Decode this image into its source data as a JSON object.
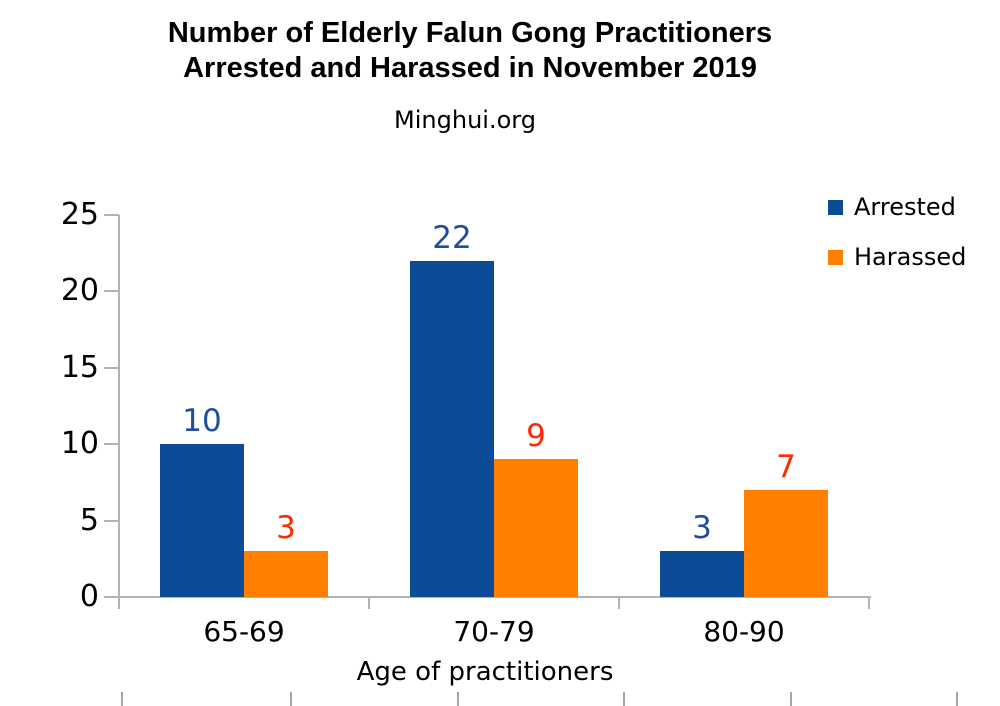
{
  "header": {
    "title_line1": "Number of Elderly Falun Gong Practitioners",
    "title_line2": "Arrested and Harassed in November 2019",
    "subtitle": "Minghui.org"
  },
  "legend": {
    "items": [
      {
        "label": "Arrested",
        "color": "#0c4b96"
      },
      {
        "label": "Harassed",
        "color": "#ff8000"
      }
    ]
  },
  "chart_data": {
    "type": "bar",
    "title": "Number of Elderly Falun Gong Practitioners Arrested and Harassed in November 2019",
    "subtitle": "Minghui.org",
    "categories": [
      "65-69",
      "70-79",
      "80-90"
    ],
    "series": [
      {
        "name": "Arrested",
        "color": "#0c4b96",
        "label_color": "#1f4e9c",
        "values": [
          10,
          22,
          3
        ]
      },
      {
        "name": "Harassed",
        "color": "#ff8000",
        "label_color": "#ff2a00",
        "values": [
          3,
          9,
          7
        ]
      }
    ],
    "xlabel": "Age of practitioners",
    "ylabel": "",
    "y_ticks": [
      0,
      5,
      10,
      15,
      20,
      25
    ],
    "ylim": [
      0,
      25
    ],
    "grid": false,
    "legend_position": "top-right",
    "data_labels": true,
    "axis_color": "#b2b2b2"
  }
}
